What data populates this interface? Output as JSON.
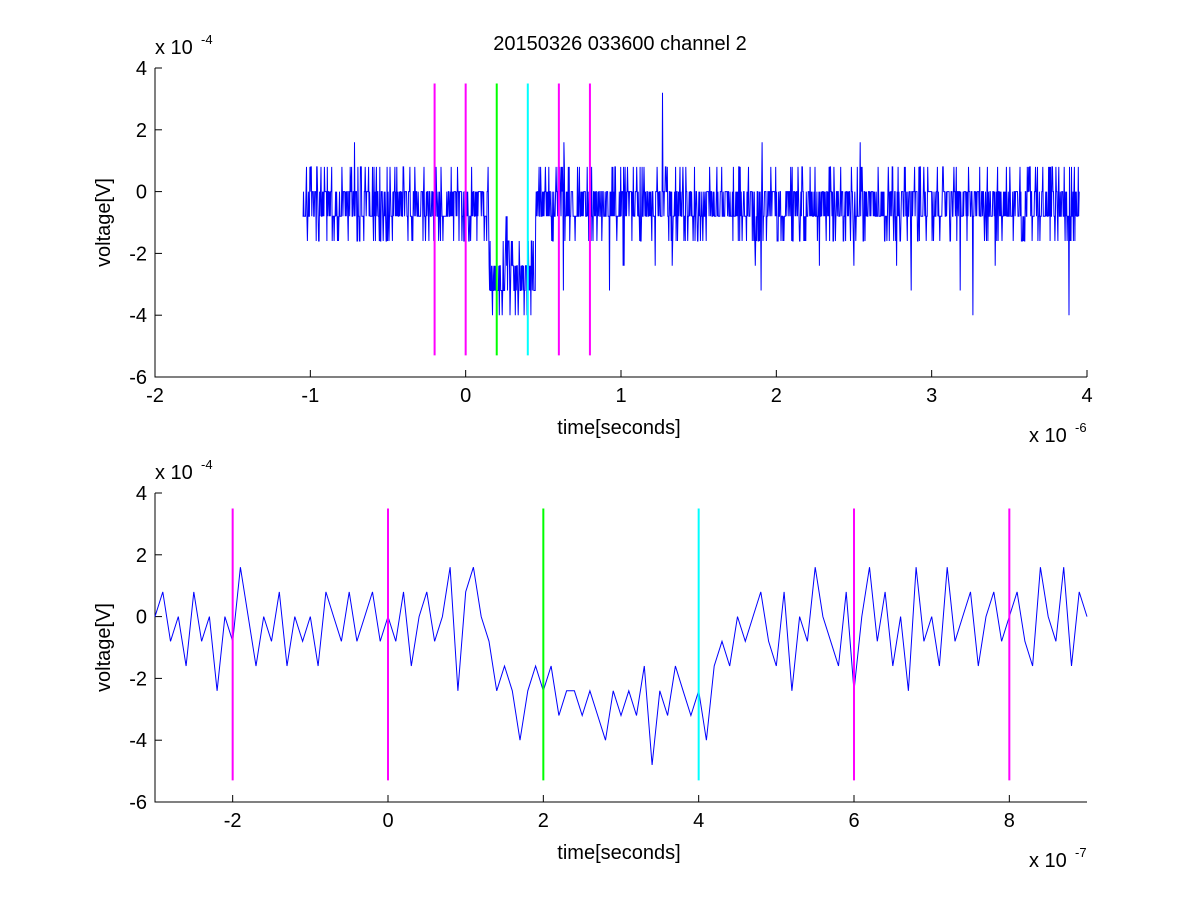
{
  "figure_title": "20150326 033600 channel 2",
  "chart_data": [
    {
      "type": "line",
      "title": "20150326 033600 channel 2",
      "xlabel": "time[seconds]",
      "ylabel": "voltage[V]",
      "x_scale_label": "x 10",
      "x_scale_exponent": "-6",
      "y_scale_label": "x 10",
      "y_scale_exponent": "-4",
      "xlim": [
        -2,
        4
      ],
      "ylim": [
        -6,
        4
      ],
      "xticks": [
        -2,
        -1,
        0,
        1,
        2,
        3,
        4
      ],
      "yticks": [
        -6,
        -4,
        -2,
        0,
        2,
        4
      ],
      "grid": false,
      "series": [
        {
          "color": "#0000ff",
          "x_range": [
            -1.05,
            3.95
          ],
          "samples": 1600,
          "seed": 7,
          "baseline": -0.4,
          "noise": 0.8,
          "dip": {
            "from": 0.15,
            "to": 0.45,
            "level": -2.6
          }
        }
      ],
      "markers": [
        {
          "x": -0.2,
          "color": "#ff00ff"
        },
        {
          "x": 0.0,
          "color": "#ff00ff"
        },
        {
          "x": 0.2,
          "color": "#00ff00"
        },
        {
          "x": 0.4,
          "color": "#00ffff"
        },
        {
          "x": 0.6,
          "color": "#ff00ff"
        },
        {
          "x": 0.8,
          "color": "#ff00ff"
        }
      ],
      "marker_range": [
        -5.3,
        3.5
      ]
    },
    {
      "type": "line",
      "xlabel": "time[seconds]",
      "ylabel": "voltage[V]",
      "x_scale_label": "x 10",
      "x_scale_exponent": "-7",
      "y_scale_label": "x 10",
      "y_scale_exponent": "-4",
      "xlim": [
        -3,
        9
      ],
      "ylim": [
        -6,
        4
      ],
      "xticks": [
        -2,
        0,
        2,
        4,
        6,
        8
      ],
      "yticks": [
        -6,
        -4,
        -2,
        0,
        2,
        4
      ],
      "grid": false,
      "series": [
        {
          "color": "#0000ff",
          "x": [
            -3.0,
            -2.9,
            -2.8,
            -2.7,
            -2.6,
            -2.5,
            -2.4,
            -2.3,
            -2.2,
            -2.1,
            -2.0,
            -1.9,
            -1.8,
            -1.7,
            -1.6,
            -1.5,
            -1.4,
            -1.3,
            -1.2,
            -1.1,
            -1.0,
            -0.9,
            -0.8,
            -0.7,
            -0.6,
            -0.5,
            -0.4,
            -0.3,
            -0.2,
            -0.1,
            0.0,
            0.1,
            0.2,
            0.3,
            0.4,
            0.5,
            0.6,
            0.7,
            0.8,
            0.9,
            1.0,
            1.1,
            1.2,
            1.3,
            1.4,
            1.5,
            1.6,
            1.7,
            1.8,
            1.9,
            2.0,
            2.1,
            2.2,
            2.3,
            2.4,
            2.5,
            2.6,
            2.7,
            2.8,
            2.9,
            3.0,
            3.1,
            3.2,
            3.3,
            3.4,
            3.5,
            3.6,
            3.7,
            3.8,
            3.9,
            4.0,
            4.1,
            4.2,
            4.3,
            4.4,
            4.5,
            4.6,
            4.7,
            4.8,
            4.9,
            5.0,
            5.1,
            5.2,
            5.3,
            5.4,
            5.5,
            5.6,
            5.7,
            5.8,
            5.9,
            6.0,
            6.1,
            6.2,
            6.3,
            6.4,
            6.5,
            6.6,
            6.7,
            6.8,
            6.9,
            7.0,
            7.1,
            7.2,
            7.3,
            7.4,
            7.5,
            7.6,
            7.7,
            7.8,
            7.9,
            8.0,
            8.1,
            8.2,
            8.3,
            8.4,
            8.5,
            8.6,
            8.7,
            8.8,
            8.9,
            9.0
          ],
          "y": [
            0.0,
            0.8,
            -0.8,
            0.0,
            -1.6,
            0.8,
            -0.8,
            0.0,
            -2.4,
            0.0,
            -0.8,
            1.6,
            0.0,
            -1.6,
            0.0,
            -0.8,
            0.8,
            -1.6,
            0.0,
            -0.8,
            0.0,
            -1.6,
            0.8,
            0.0,
            -0.8,
            0.8,
            -0.8,
            0.0,
            0.8,
            -0.8,
            0.0,
            -0.8,
            0.8,
            -1.6,
            0.0,
            0.8,
            -0.8,
            0.0,
            1.6,
            -2.4,
            0.8,
            1.6,
            0.0,
            -0.8,
            -2.4,
            -1.6,
            -2.4,
            -4.0,
            -2.4,
            -1.6,
            -2.4,
            -1.6,
            -3.2,
            -2.4,
            -2.4,
            -3.2,
            -2.4,
            -3.2,
            -4.0,
            -2.4,
            -3.2,
            -2.4,
            -3.2,
            -1.6,
            -4.8,
            -2.4,
            -3.2,
            -1.6,
            -2.4,
            -3.2,
            -2.4,
            -4.0,
            -1.6,
            -0.8,
            -1.6,
            0.0,
            -0.8,
            0.0,
            0.8,
            -0.8,
            -1.6,
            0.8,
            -2.4,
            0.0,
            -0.8,
            1.6,
            0.0,
            -0.8,
            -1.6,
            0.8,
            -2.4,
            0.0,
            1.6,
            -0.8,
            0.8,
            -1.6,
            0.0,
            -2.4,
            1.6,
            -0.8,
            0.0,
            -1.6,
            1.6,
            -0.8,
            0.0,
            0.8,
            -1.6,
            0.0,
            0.8,
            -0.8,
            0.0,
            0.8,
            -0.8,
            -1.6,
            1.6,
            0.0,
            -0.8,
            1.6,
            -1.6,
            0.8,
            0.0
          ]
        }
      ],
      "markers": [
        {
          "x": -2,
          "color": "#ff00ff"
        },
        {
          "x": 0,
          "color": "#ff00ff"
        },
        {
          "x": 2,
          "color": "#00ff00"
        },
        {
          "x": 4,
          "color": "#00ffff"
        },
        {
          "x": 6,
          "color": "#ff00ff"
        },
        {
          "x": 8,
          "color": "#ff00ff"
        }
      ],
      "marker_range": [
        -5.3,
        3.5
      ]
    }
  ]
}
